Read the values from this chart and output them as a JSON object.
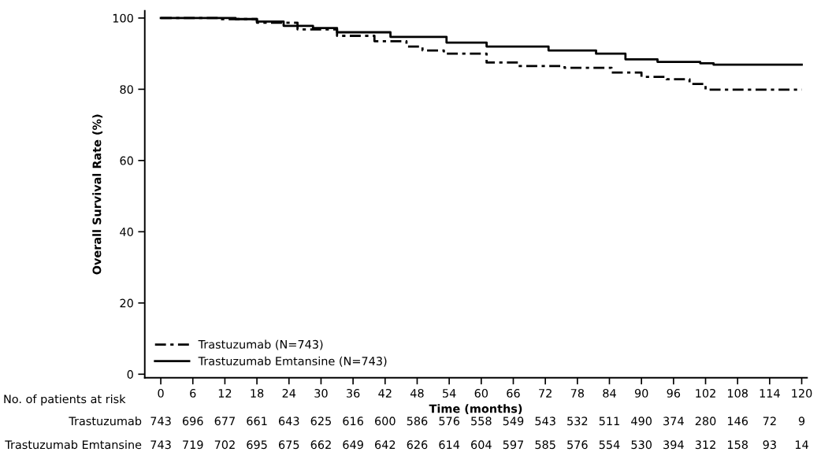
{
  "chart_data": {
    "type": "step",
    "xlabel": "Time (months)",
    "ylabel": "Overall Survival Rate (%)",
    "xlim": [
      -3,
      121
    ],
    "ylim": [
      -1,
      102
    ],
    "xticks": [
      0,
      6,
      12,
      18,
      24,
      30,
      36,
      42,
      48,
      54,
      60,
      66,
      72,
      78,
      84,
      90,
      96,
      102,
      108,
      114,
      120
    ],
    "yticks": [
      0,
      20,
      40,
      60,
      80,
      100
    ],
    "legend": "bottom left",
    "grid": false,
    "series": [
      {
        "name": "Trastuzumab (N=743)",
        "color": "#000000",
        "line_style": "dashed",
        "x": [
          0,
          11,
          18,
          25.6,
          33,
          40,
          46,
          49,
          53,
          61,
          67,
          75.6,
          84.4,
          90,
          94.7,
          99,
          102,
          120
        ],
        "values": [
          100,
          99.7,
          98.7,
          96.8,
          95,
          93.5,
          92,
          90.9,
          90,
          87.5,
          86.5,
          86,
          84.7,
          83.5,
          82.8,
          81.5,
          79.9,
          79.9
        ]
      },
      {
        "name": "Trastuzumab Emtansine (N=743)",
        "color": "#000000",
        "line_style": "solid",
        "x": [
          0,
          14,
          18,
          23,
          28.5,
          33,
          43,
          53.5,
          61,
          67,
          72.6,
          81.5,
          87,
          93,
          101,
          103.5,
          120
        ],
        "values": [
          100,
          99.7,
          99,
          97.8,
          97.2,
          96,
          94.7,
          93.1,
          92,
          92,
          90.9,
          90,
          88.4,
          87.7,
          87.3,
          86.9,
          86.9
        ]
      }
    ],
    "annotations": [
      "No. of patients at risk",
      "Trastuzumab",
      "743",
      "696",
      "677",
      "661",
      "643",
      "625",
      "616",
      "600",
      "586",
      "576",
      "558",
      "549",
      "543",
      "532",
      "511",
      "490",
      "374",
      "280",
      "146",
      "72",
      "9",
      "Trastuzumab Emtansine",
      "743",
      "719",
      "702",
      "695",
      "675",
      "662",
      "649",
      "642",
      "626",
      "614",
      "604",
      "597",
      "585",
      "576",
      "554",
      "530",
      "394",
      "312",
      "158",
      "93",
      "14"
    ]
  }
}
